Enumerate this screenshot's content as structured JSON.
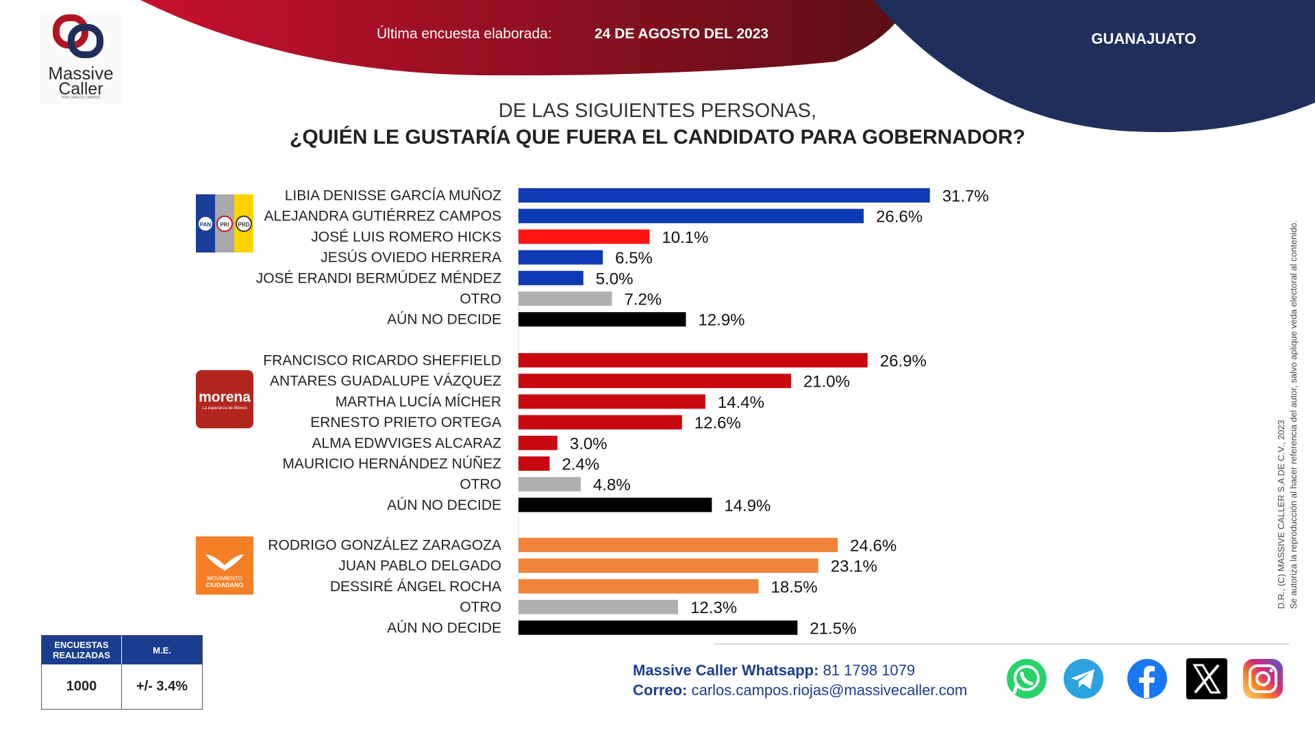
{
  "header": {
    "survey_label": "Última encuesta elaborada:",
    "survey_date": "24 DE AGOSTO DEL 2023",
    "region": "GUANAJUATO"
  },
  "logo": {
    "line1": "Massive",
    "line2": "Caller",
    "tagline": "POR CARLOS CAMPOS"
  },
  "chart_data": {
    "type": "bar",
    "title": "DE LAS SIGUIENTES PERSONAS,",
    "subtitle": "¿QUIÉN LE GUSTARÍA QUE FUERA EL CANDIDATO PARA GOBERNADOR?",
    "xlim": [
      0,
      35
    ],
    "unit": "%",
    "groups": [
      {
        "logo_texts": [
          "PAN",
          "PRI",
          "PRD"
        ],
        "colors": [
          "#1a3d9a",
          "#a7a9ac",
          "#ffd200"
        ],
        "bars": [
          {
            "label": "LIBIA DENISSE GARCÍA MUÑOZ",
            "value": 31.7,
            "display": "31.7%",
            "color": "#0f3ab5"
          },
          {
            "label": "ALEJANDRA GUTIÉRREZ CAMPOS",
            "value": 26.6,
            "display": "26.6%",
            "color": "#0f3ab5"
          },
          {
            "label": "JOSÉ LUIS ROMERO HICKS",
            "value": 10.1,
            "display": "10.1%",
            "color": "#ff1212"
          },
          {
            "label": "JESÚS OVIEDO HERRERA",
            "value": 6.5,
            "display": "6.5%",
            "color": "#0f3ab5"
          },
          {
            "label": "JOSÉ ERANDI BERMÚDEZ MÉNDEZ",
            "value": 5.0,
            "display": "5.0%",
            "color": "#0f3ab5"
          },
          {
            "label": "OTRO",
            "value": 7.2,
            "display": "7.2%",
            "color": "#b0b0b0"
          },
          {
            "label": "AÚN NO DECIDE",
            "value": 12.9,
            "display": "12.9%",
            "color": "#000000"
          }
        ]
      },
      {
        "logo_texts": [
          "morena",
          "La esperanza de México"
        ],
        "colors": [
          "#b3261e"
        ],
        "bars": [
          {
            "label": "FRANCISCO RICARDO SHEFFIELD",
            "value": 26.9,
            "display": "26.9%",
            "color": "#c8090f"
          },
          {
            "label": "ANTARES GUADALUPE VÁZQUEZ",
            "value": 21.0,
            "display": "21.0%",
            "color": "#c8090f"
          },
          {
            "label": "MARTHA LUCÍA MÍCHER",
            "value": 14.4,
            "display": "14.4%",
            "color": "#c8090f"
          },
          {
            "label": "ERNESTO PRIETO ORTEGA",
            "value": 12.6,
            "display": "12.6%",
            "color": "#c8090f"
          },
          {
            "label": "ALMA EDWVIGES ALCARAZ",
            "value": 3.0,
            "display": "3.0%",
            "color": "#c8090f"
          },
          {
            "label": "MAURICIO HERNÁNDEZ NÚÑEZ",
            "value": 2.4,
            "display": "2.4%",
            "color": "#c8090f"
          },
          {
            "label": "OTRO",
            "value": 4.8,
            "display": "4.8%",
            "color": "#b0b0b0"
          },
          {
            "label": "AÚN NO DECIDE",
            "value": 14.9,
            "display": "14.9%",
            "color": "#000000"
          }
        ]
      },
      {
        "logo_texts": [
          "MOVIMIENTO",
          "CIUDADANO"
        ],
        "colors": [
          "#f47f27"
        ],
        "bars": [
          {
            "label": "RODRIGO GONZÁLEZ ZARAGOZA",
            "value": 24.6,
            "display": "24.6%",
            "color": "#f0843a"
          },
          {
            "label": "JUAN PABLO DELGADO",
            "value": 23.1,
            "display": "23.1%",
            "color": "#f0843a"
          },
          {
            "label": "DESSIRÉ ÁNGEL ROCHA",
            "value": 18.5,
            "display": "18.5%",
            "color": "#f0843a"
          },
          {
            "label": "OTRO",
            "value": 12.3,
            "display": "12.3%",
            "color": "#b0b0b0"
          },
          {
            "label": "AÚN NO DECIDE",
            "value": 21.5,
            "display": "21.5%",
            "color": "#000000"
          }
        ]
      }
    ]
  },
  "stats": {
    "surveys_header": "ENCUESTAS REALIZADAS",
    "margin_header": "M.E.",
    "surveys_value": "1000",
    "margin_value": "+/- 3.4%"
  },
  "contact": {
    "whatsapp_label": "Massive Caller Whatsapp:",
    "whatsapp_number": "81 1798 1079",
    "email_label": "Correo:",
    "email": "carlos.campos.riojas@massivecaller.com"
  },
  "side_note": {
    "line1": "D.R., (C) MASSIVE CALLER S.A DE C.V., 2023",
    "line2": "Se autoriza la reproducción al hacer referencia del autor, salvo aplique veda electoral al contenido."
  },
  "social_icons": [
    "whatsapp-icon",
    "telegram-icon",
    "facebook-icon",
    "x-icon",
    "instagram-icon"
  ],
  "colors": {
    "banner_red": "#b0161f",
    "banner_navy": "#1f2f5c",
    "table_blue": "#1a3d8f"
  }
}
